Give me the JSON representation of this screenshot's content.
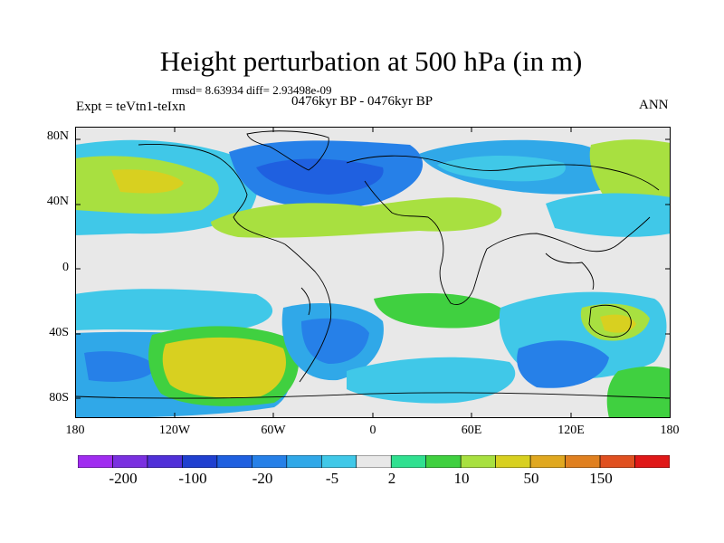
{
  "title": "Height perturbation at 500 hPa (in m)",
  "stats": "rmsd= 8.63934 diff= 2.93498e-09",
  "experiment": "Expt = teVtn1-teIxn",
  "period": "0476kyr BP - 0476kyr BP",
  "season": "ANN",
  "lat_labels": [
    "80N",
    "40N",
    "0",
    "40S",
    "80S"
  ],
  "lon_labels": [
    "180",
    "120W",
    "60W",
    "0",
    "60E",
    "120E",
    "180"
  ],
  "colorbar": {
    "colors": [
      "#a02cf0",
      "#7a30e0",
      "#5030d8",
      "#2040d0",
      "#1f60e0",
      "#2680e8",
      "#30a8e8",
      "#40c8e8",
      "#e8e8e8",
      "#30e090",
      "#40d040",
      "#a8e040",
      "#d8d020",
      "#e0a820",
      "#e08020",
      "#e05020",
      "#e01818"
    ],
    "tick_labels": [
      "-200",
      "-100",
      "-20",
      "-5",
      "2",
      "10",
      "50",
      "150"
    ]
  },
  "palette": {
    "land_outline": "#000000",
    "neutral": "#e8e8e8",
    "cyan": "#40c8e8",
    "light_blue": "#30a8e8",
    "blue": "#2680e8",
    "dark_blue": "#1f60e0",
    "teal": "#30e090",
    "green": "#40d040",
    "yellow_green": "#a8e040",
    "yellow": "#d8d020"
  }
}
